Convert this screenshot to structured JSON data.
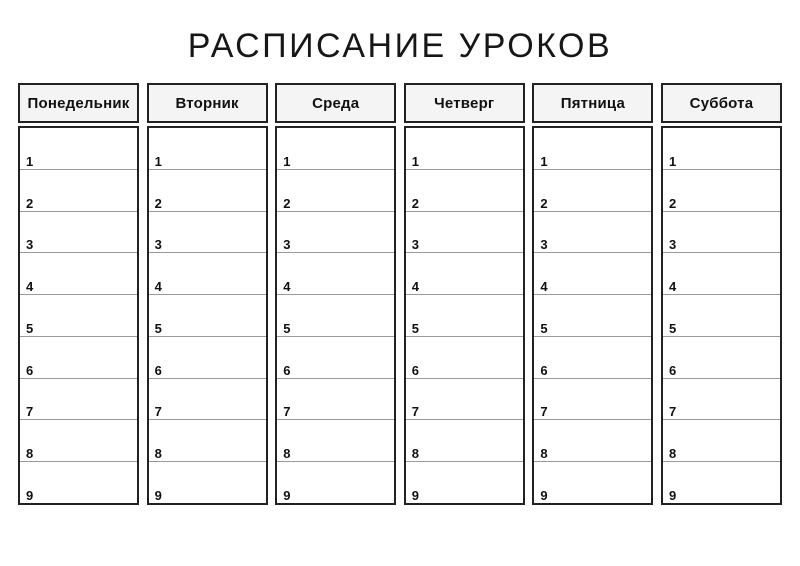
{
  "title": "РАСПИСАНИЕ УРОКОВ",
  "days": [
    "Понедельник",
    "Вторник",
    "Среда",
    "Четверг",
    "Пятница",
    "Суббота"
  ],
  "lesson_numbers": [
    "1",
    "2",
    "3",
    "4",
    "5",
    "6",
    "7",
    "8",
    "9"
  ],
  "colors": {
    "header_fill": "#f4f4f4",
    "box_border": "#222222",
    "row_line": "#9a9a9a",
    "text": "#111111"
  }
}
